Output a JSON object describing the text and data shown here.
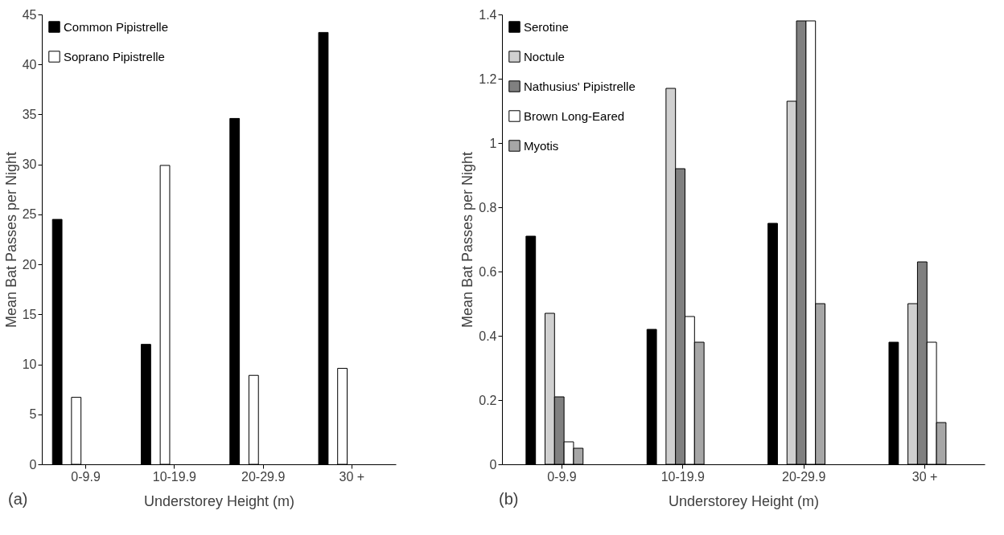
{
  "chart_data": [
    {
      "type": "bar",
      "xlabel": "Understorey Height (m)",
      "ylabel": "Mean Bat Passes per Night",
      "categories": [
        "0-9.9",
        "10-19.9",
        "20-29.9",
        "30 +"
      ],
      "series": [
        {
          "name": "Common Pipistrelle",
          "color": "#000000",
          "values": [
            24.5,
            12,
            34.6,
            43.2
          ]
        },
        {
          "name": "Soprano Pipistrelle",
          "color": "#ffffff",
          "values": [
            6.7,
            29.9,
            8.9,
            9.6
          ]
        }
      ],
      "ylim": [
        0,
        45
      ],
      "yticks": [
        0,
        5,
        10,
        15,
        20,
        25,
        30,
        35,
        40,
        45
      ],
      "grid": false,
      "legend": "top left",
      "annotations": [
        "(a)"
      ]
    },
    {
      "type": "bar",
      "xlabel": "Understorey Height (m)",
      "ylabel": "Mean Bat Passes per Night",
      "categories": [
        "0-9.9",
        "10-19.9",
        "20-29.9",
        "30 +"
      ],
      "series": [
        {
          "name": "Serotine",
          "color": "#000000",
          "values": [
            0.71,
            0.42,
            0.75,
            0.38
          ]
        },
        {
          "name": "Noctule",
          "color": "#d0d0d0",
          "values": [
            0.47,
            1.17,
            1.13,
            0.5
          ]
        },
        {
          "name": "Nathusius' Pipistrelle",
          "color": "#808080",
          "values": [
            0.21,
            0.92,
            1.38,
            0.63
          ]
        },
        {
          "name": "Brown Long-Eared",
          "color": "#ffffff",
          "values": [
            0.07,
            0.46,
            1.38,
            0.38
          ]
        },
        {
          "name": "Myotis",
          "color": "#a6a6a6",
          "values": [
            0.05,
            0.38,
            0.5,
            0.13
          ]
        }
      ],
      "ylim": [
        0,
        1.4
      ],
      "yticks": [
        0,
        0.2,
        0.4,
        0.6,
        0.8,
        1,
        1.2,
        1.4
      ],
      "grid": false,
      "legend": "top left",
      "annotations": [
        "(b)"
      ]
    }
  ]
}
